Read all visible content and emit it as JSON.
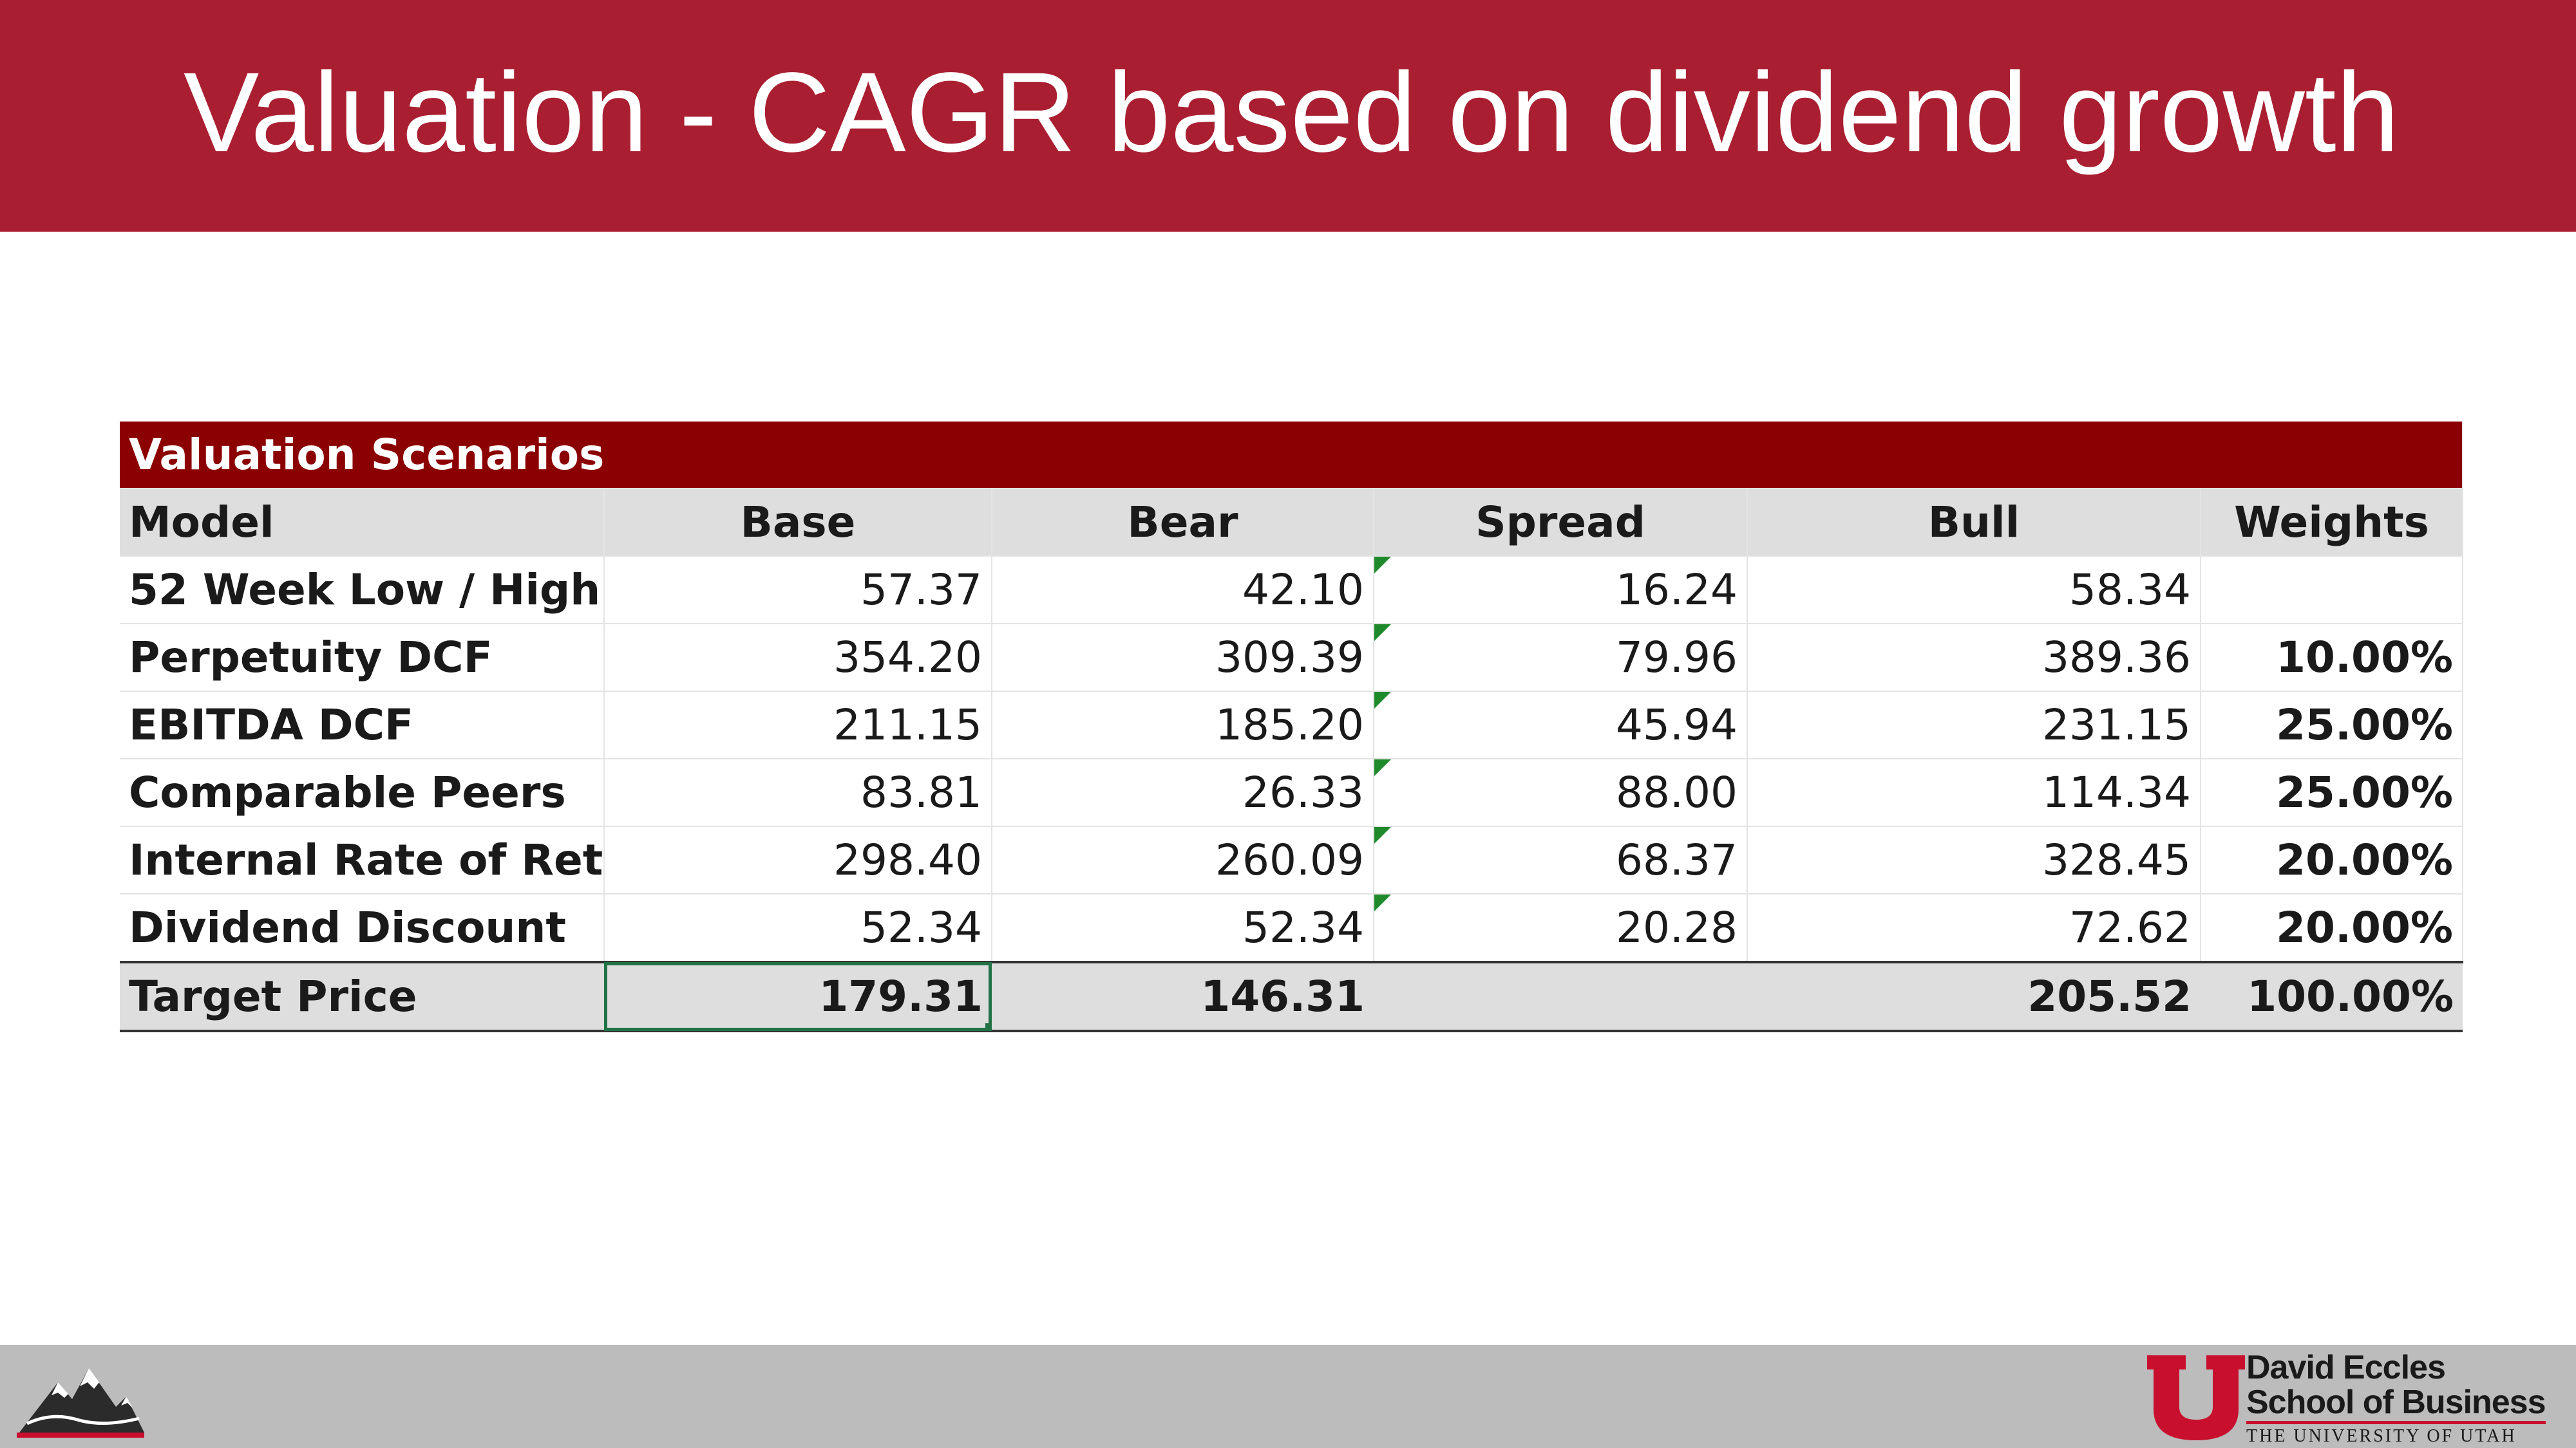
{
  "slide": {
    "title": "Valuation - CAGR based on dividend growth"
  },
  "table": {
    "banner": "Valuation Scenarios",
    "headers": {
      "model": "Model",
      "base": "Base",
      "bear": "Bear",
      "spread": "Spread",
      "bull": "Bull",
      "weights": "Weights"
    },
    "rows": [
      {
        "model": "52 Week Low / High",
        "base": "57.37",
        "bear": "42.10",
        "spread": "16.24",
        "bull": "58.34",
        "weight": ""
      },
      {
        "model": "Perpetuity DCF",
        "base": "354.20",
        "bear": "309.39",
        "spread": "79.96",
        "bull": "389.36",
        "weight": "10.00%"
      },
      {
        "model": "EBITDA DCF",
        "base": "211.15",
        "bear": "185.20",
        "spread": "45.94",
        "bull": "231.15",
        "weight": "25.00%"
      },
      {
        "model": "Comparable Peers",
        "base": "83.81",
        "bear": "26.33",
        "spread": "88.00",
        "bull": "114.34",
        "weight": "25.00%"
      },
      {
        "model": "Internal Rate of Return",
        "base": "298.40",
        "bear": "260.09",
        "spread": "68.37",
        "bull": "328.45",
        "weight": "20.00%"
      },
      {
        "model": "Dividend Discount",
        "base": "52.34",
        "bear": "52.34",
        "spread": "20.28",
        "bull": "72.62",
        "weight": "20.00%"
      }
    ],
    "total": {
      "model": "Target Price",
      "base": "179.31",
      "bear": "146.31",
      "spread": "",
      "bull": "205.52",
      "weight": "100.00%"
    }
  },
  "footer": {
    "school_line1": "David Eccles",
    "school_line2": "School of Business",
    "school_line3": "THE UNIVERSITY OF UTAH"
  },
  "colors": {
    "title_bar": "#a91f31",
    "table_banner": "#8b0000",
    "header_fill": "#dedede",
    "footer_fill": "#bcbcbc",
    "selection": "#217346"
  },
  "icons": {
    "footer_left": "mountain-logo-icon",
    "footer_right": "block-u-logo-icon"
  }
}
